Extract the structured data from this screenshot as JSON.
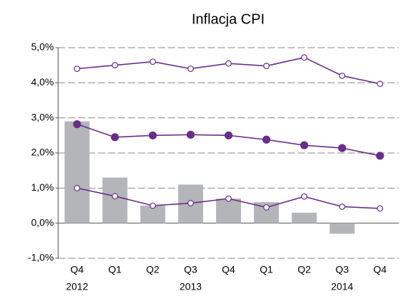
{
  "chart_data": {
    "type": "combo",
    "title": "Inflacja CPI",
    "categories": [
      "Q4",
      "Q1",
      "Q2",
      "Q3",
      "Q4",
      "Q1",
      "Q2",
      "Q3",
      "Q4"
    ],
    "x_groups": [
      "2012",
      null,
      null,
      "2013",
      null,
      null,
      null,
      "2014",
      null
    ],
    "series": [
      {
        "type": "bar",
        "color": "#b3b5b8",
        "values": [
          2.9,
          1.3,
          0.5,
          1.1,
          0.7,
          0.6,
          0.3,
          -0.3,
          null
        ]
      },
      {
        "type": "line",
        "color": "#6a2d8a",
        "marker": "open",
        "values": [
          4.4,
          4.5,
          4.6,
          4.4,
          4.55,
          4.48,
          4.72,
          4.2,
          3.97
        ]
      },
      {
        "type": "line",
        "color": "#6a2d8a",
        "marker": "filled",
        "values": [
          2.82,
          2.45,
          2.5,
          2.52,
          2.5,
          2.38,
          2.22,
          2.14,
          1.92
        ]
      },
      {
        "type": "line",
        "color": "#6a2d8a",
        "marker": "open",
        "values": [
          1.0,
          0.77,
          0.5,
          0.57,
          0.7,
          0.45,
          0.76,
          0.47,
          0.42
        ]
      }
    ],
    "ylim": [
      -1,
      5
    ],
    "yticks": [
      {
        "value": -1,
        "label": "-1,0%"
      },
      {
        "value": 0,
        "label": "0,0%"
      },
      {
        "value": 1,
        "label": "1,0%"
      },
      {
        "value": 2,
        "label": "2,0%"
      },
      {
        "value": 3,
        "label": "3,0%"
      },
      {
        "value": 4,
        "label": "4,0%"
      },
      {
        "value": 5,
        "label": "5,0%"
      }
    ],
    "grid": true
  }
}
